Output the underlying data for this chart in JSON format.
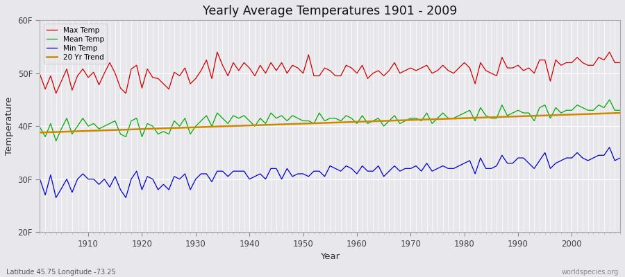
{
  "title": "Yearly Average Temperatures 1901 - 2009",
  "xlabel": "Year",
  "ylabel": "Temperature",
  "xlim": [
    1901,
    2009
  ],
  "ylim": [
    20,
    60
  ],
  "yticks": [
    20,
    30,
    40,
    50,
    60
  ],
  "ytick_labels": [
    "20F",
    "30F",
    "40F",
    "50F",
    "60F"
  ],
  "xticks": [
    1910,
    1920,
    1930,
    1940,
    1950,
    1960,
    1970,
    1980,
    1990,
    2000
  ],
  "legend_labels": [
    "Max Temp",
    "Mean Temp",
    "Min Temp",
    "20 Yr Trend"
  ],
  "legend_colors": [
    "#cc0000",
    "#00aa00",
    "#0000cc",
    "#cc8800"
  ],
  "bg_color": "#e8e8ec",
  "grid_color": "#ffffff",
  "lat_lon_text": "Latitude 45.75 Longitude -73.25",
  "watermark": "worldspecies.org",
  "years": [
    1901,
    1902,
    1903,
    1904,
    1905,
    1906,
    1907,
    1908,
    1909,
    1910,
    1911,
    1912,
    1913,
    1914,
    1915,
    1916,
    1917,
    1918,
    1919,
    1920,
    1921,
    1922,
    1923,
    1924,
    1925,
    1926,
    1927,
    1928,
    1929,
    1930,
    1931,
    1932,
    1933,
    1934,
    1935,
    1936,
    1937,
    1938,
    1939,
    1940,
    1941,
    1942,
    1943,
    1944,
    1945,
    1946,
    1947,
    1948,
    1949,
    1950,
    1951,
    1952,
    1953,
    1954,
    1955,
    1956,
    1957,
    1958,
    1959,
    1960,
    1961,
    1962,
    1963,
    1964,
    1965,
    1966,
    1967,
    1968,
    1969,
    1970,
    1971,
    1972,
    1973,
    1974,
    1975,
    1976,
    1977,
    1978,
    1979,
    1980,
    1981,
    1982,
    1983,
    1984,
    1985,
    1986,
    1987,
    1988,
    1989,
    1990,
    1991,
    1992,
    1993,
    1994,
    1995,
    1996,
    1997,
    1998,
    1999,
    2000,
    2001,
    2002,
    2003,
    2004,
    2005,
    2006,
    2007,
    2008,
    2009
  ],
  "max_temp": [
    49.8,
    47.0,
    49.5,
    46.2,
    48.5,
    50.8,
    46.8,
    49.5,
    50.8,
    49.2,
    50.2,
    47.8,
    50.0,
    52.0,
    50.0,
    47.2,
    46.2,
    50.8,
    51.5,
    47.2,
    50.8,
    49.2,
    49.0,
    48.0,
    47.0,
    50.2,
    49.5,
    51.0,
    48.0,
    49.0,
    50.5,
    52.5,
    49.0,
    54.0,
    51.5,
    49.5,
    52.0,
    50.5,
    52.0,
    51.0,
    49.5,
    51.5,
    50.0,
    52.0,
    50.5,
    52.0,
    50.0,
    51.5,
    51.0,
    50.0,
    53.5,
    49.5,
    49.5,
    51.0,
    50.5,
    49.5,
    49.5,
    51.5,
    51.0,
    50.0,
    51.5,
    49.0,
    50.0,
    50.5,
    49.5,
    50.5,
    52.0,
    50.0,
    50.5,
    51.0,
    50.5,
    51.0,
    51.5,
    50.0,
    50.5,
    51.5,
    50.5,
    50.0,
    51.0,
    52.0,
    51.0,
    48.0,
    52.0,
    50.5,
    50.0,
    49.5,
    53.0,
    51.0,
    51.0,
    51.5,
    50.5,
    51.0,
    50.0,
    52.5,
    52.5,
    48.5,
    52.5,
    51.5,
    52.0,
    52.0,
    53.0,
    52.0,
    51.5,
    51.5,
    53.0,
    52.5,
    54.0,
    52.0,
    52.0
  ],
  "mean_temp": [
    39.8,
    38.0,
    40.5,
    37.2,
    39.5,
    41.5,
    38.5,
    40.0,
    41.5,
    40.0,
    40.5,
    39.5,
    40.0,
    40.5,
    41.0,
    38.5,
    38.0,
    41.0,
    41.5,
    38.0,
    40.5,
    40.0,
    38.5,
    39.0,
    38.5,
    41.0,
    40.0,
    41.5,
    38.5,
    40.0,
    41.0,
    42.0,
    40.0,
    42.5,
    41.5,
    40.5,
    42.0,
    41.5,
    42.0,
    41.0,
    40.0,
    41.5,
    40.5,
    42.5,
    41.5,
    42.0,
    41.0,
    42.0,
    41.5,
    41.0,
    41.0,
    40.5,
    42.5,
    41.0,
    41.5,
    41.5,
    41.0,
    42.0,
    41.5,
    40.5,
    42.0,
    40.5,
    41.0,
    41.5,
    40.0,
    41.0,
    42.0,
    40.5,
    41.0,
    41.5,
    41.5,
    41.0,
    42.5,
    40.5,
    41.5,
    42.5,
    41.5,
    41.5,
    42.0,
    42.5,
    43.0,
    41.0,
    43.5,
    42.0,
    41.5,
    41.5,
    44.0,
    42.0,
    42.5,
    43.0,
    42.5,
    42.5,
    41.0,
    43.5,
    44.0,
    41.5,
    43.5,
    42.5,
    43.0,
    43.0,
    44.0,
    43.5,
    43.0,
    43.0,
    44.0,
    43.5,
    45.0,
    43.0,
    43.0
  ],
  "min_temp": [
    30.0,
    27.0,
    30.8,
    26.5,
    28.2,
    30.0,
    27.5,
    30.0,
    31.0,
    30.0,
    30.0,
    29.0,
    30.0,
    28.5,
    30.5,
    28.0,
    26.5,
    30.0,
    31.5,
    28.0,
    30.5,
    30.0,
    28.0,
    29.0,
    28.0,
    30.5,
    30.0,
    31.0,
    28.0,
    30.0,
    31.0,
    31.0,
    29.5,
    31.5,
    31.5,
    30.5,
    31.5,
    31.5,
    31.5,
    30.0,
    30.5,
    31.0,
    30.0,
    32.0,
    32.0,
    30.0,
    32.0,
    30.5,
    31.0,
    31.0,
    30.5,
    31.5,
    31.5,
    30.5,
    32.5,
    32.0,
    31.5,
    32.5,
    32.0,
    31.0,
    32.5,
    31.5,
    31.5,
    32.5,
    30.5,
    31.5,
    32.5,
    31.5,
    32.0,
    32.0,
    32.5,
    31.5,
    33.0,
    31.5,
    32.0,
    32.5,
    32.0,
    32.0,
    32.5,
    33.0,
    33.5,
    31.0,
    34.0,
    32.0,
    32.0,
    32.5,
    34.5,
    33.0,
    33.0,
    34.0,
    34.0,
    33.0,
    32.0,
    33.5,
    35.0,
    32.0,
    33.0,
    33.5,
    34.0,
    34.0,
    35.0,
    34.0,
    33.5,
    34.0,
    34.5,
    34.5,
    36.0,
    33.5,
    34.0
  ],
  "trend_x": [
    1901,
    2009
  ],
  "trend_y": [
    38.8,
    42.5
  ]
}
